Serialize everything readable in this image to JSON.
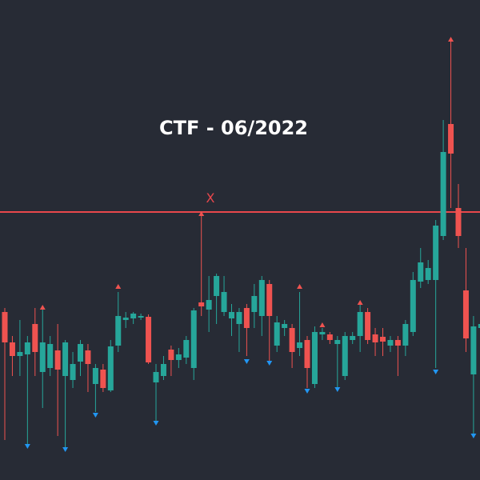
{
  "chart_data": {
    "type": "candlestick",
    "title": "CTF - 06/2022",
    "annotation": "X",
    "ylim": [
      0,
      600
    ],
    "up_color": "#26a69a",
    "down_color": "#ef5350",
    "pivot_high_color": "#ef5350",
    "pivot_low_color": "#2196f3",
    "level": 335,
    "level_color": "#e8474c",
    "open": [
      210,
      172,
      155,
      157,
      195,
      135,
      140,
      162,
      130,
      125,
      148,
      162,
      120,
      138,
      112,
      168,
      200,
      202,
      203,
      204,
      122,
      130,
      163,
      150,
      153,
      140,
      222,
      213,
      230,
      210,
      202,
      195,
      215,
      210,
      205,
      245,
      168,
      190,
      190,
      165,
      175,
      120,
      182,
      182,
      170,
      130,
      175,
      180,
      210,
      182,
      179,
      168,
      175,
      168,
      185,
      248,
      250,
      250,
      305,
      445,
      340,
      237,
      132,
      190
    ],
    "high": [
      215,
      180,
      200,
      180,
      215,
      215,
      180,
      195,
      175,
      160,
      175,
      170,
      145,
      145,
      175,
      235,
      210,
      210,
      208,
      207,
      145,
      155,
      168,
      165,
      180,
      215,
      330,
      255,
      258,
      255,
      220,
      215,
      220,
      245,
      255,
      250,
      205,
      200,
      195,
      235,
      180,
      192,
      190,
      185,
      180,
      185,
      185,
      220,
      215,
      190,
      190,
      180,
      180,
      200,
      260,
      290,
      275,
      325,
      450,
      550,
      370,
      290,
      205,
      210
    ],
    "low": [
      50,
      130,
      130,
      45,
      130,
      90,
      130,
      55,
      40,
      115,
      130,
      110,
      85,
      110,
      110,
      160,
      190,
      195,
      200,
      145,
      70,
      125,
      130,
      140,
      145,
      125,
      205,
      185,
      195,
      205,
      180,
      160,
      155,
      190,
      180,
      145,
      160,
      180,
      140,
      155,
      115,
      115,
      175,
      170,
      115,
      125,
      170,
      160,
      170,
      155,
      155,
      160,
      130,
      155,
      180,
      240,
      245,
      140,
      300,
      340,
      290,
      160,
      55,
      80
    ],
    "close": [
      172,
      155,
      160,
      172,
      160,
      172,
      170,
      138,
      172,
      145,
      170,
      145,
      140,
      115,
      167,
      205,
      203,
      208,
      205,
      147,
      135,
      145,
      150,
      157,
      175,
      212,
      217,
      225,
      255,
      235,
      210,
      210,
      190,
      230,
      250,
      205,
      197,
      195,
      160,
      172,
      140,
      185,
      185,
      175,
      175,
      180,
      180,
      210,
      175,
      172,
      173,
      175,
      168,
      195,
      250,
      272,
      265,
      318,
      410,
      408,
      305,
      177,
      192,
      195
    ],
    "pivot_high": [
      null,
      null,
      null,
      null,
      null,
      219,
      null,
      null,
      null,
      null,
      null,
      null,
      null,
      null,
      null,
      245,
      null,
      null,
      null,
      null,
      null,
      null,
      null,
      null,
      null,
      null,
      336,
      null,
      null,
      null,
      null,
      null,
      null,
      null,
      null,
      null,
      null,
      null,
      null,
      245,
      null,
      null,
      197,
      null,
      null,
      null,
      null,
      225,
      null,
      null,
      null,
      null,
      null,
      null,
      null,
      null,
      null,
      null,
      null,
      554,
      null,
      null,
      null,
      null
    ],
    "pivot_low": [
      null,
      null,
      null,
      39,
      null,
      null,
      null,
      null,
      35,
      null,
      null,
      null,
      78,
      null,
      null,
      null,
      null,
      null,
      null,
      null,
      68,
      null,
      null,
      null,
      null,
      null,
      null,
      null,
      null,
      null,
      null,
      null,
      145,
      null,
      null,
      143,
      null,
      null,
      null,
      null,
      108,
      null,
      null,
      null,
      110,
      null,
      null,
      null,
      null,
      null,
      null,
      null,
      null,
      null,
      null,
      null,
      null,
      132,
      null,
      null,
      null,
      null,
      52,
      null
    ]
  }
}
